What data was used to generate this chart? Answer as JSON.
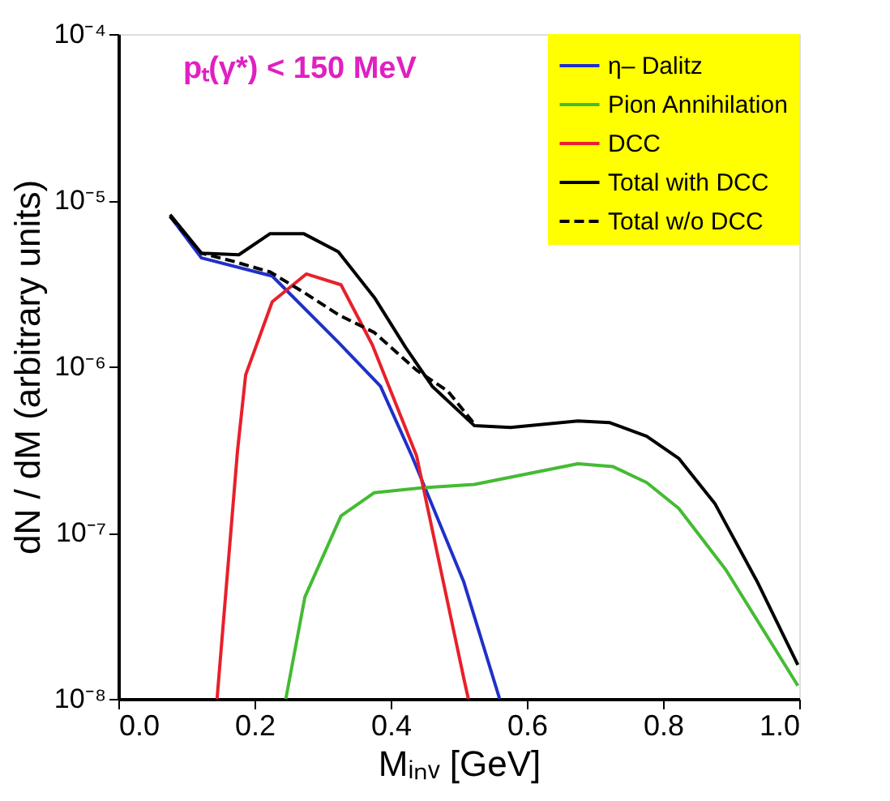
{
  "chart_data": {
    "type": "line",
    "xlabel": "Mᵢₙᵥ [GeV]",
    "ylabel": "dN / dM (arbitrary units)",
    "annotations": [
      "pₜ(γ*) < 150 MeV"
    ],
    "log": "y",
    "grid": false,
    "legend": "top right",
    "marker": "none",
    "xlim": [
      0,
      1
    ],
    "xticks": [
      {
        "value": 0,
        "label": "0.0"
      },
      0.2,
      0.4,
      0.6,
      0.8,
      {
        "value": 1,
        "label": "1.0"
      }
    ],
    "ylim": [
      1e-08,
      0.0001
    ],
    "yticks": [
      {
        "value": 1e-08,
        "label": "10⁻⁸"
      },
      {
        "value": 1e-07,
        "label": "10⁻⁷"
      },
      {
        "value": 1e-06,
        "label": "10⁻⁶"
      },
      {
        "value": 1e-05,
        "label": "10⁻⁵"
      },
      {
        "value": 0.0001,
        "label": "10⁻⁴"
      }
    ],
    "series": [
      {
        "name": "η– Dalitz",
        "color": "#2030c8",
        "line_style": "solid",
        "x": [
          0.076,
          0.122,
          0.226,
          0.323,
          0.385,
          0.431,
          0.507,
          0.56
        ],
        "values": [
          8e-06,
          4.5e-06,
          3.5e-06,
          1.4e-06,
          7.6e-07,
          2.9e-07,
          5.1e-08,
          1e-08
        ]
      },
      {
        "name": "Pion Annihilation",
        "color": "#44bb33",
        "line_style": "solid",
        "x": [
          0.246,
          0.274,
          0.327,
          0.376,
          0.445,
          0.523,
          0.675,
          0.726,
          0.776,
          0.823,
          0.892,
          0.998
        ],
        "values": [
          1e-08,
          4.1e-08,
          1.26e-07,
          1.74e-07,
          1.86e-07,
          1.95e-07,
          2.6e-07,
          2.5e-07,
          2e-07,
          1.4e-07,
          6e-08,
          1.2e-08
        ]
      },
      {
        "name": "DCC",
        "color": "#e8202a",
        "line_style": "solid",
        "x": [
          0.145,
          0.175,
          0.187,
          0.226,
          0.276,
          0.327,
          0.373,
          0.438,
          0.507,
          0.514
        ],
        "values": [
          1e-08,
          3.1e-07,
          8.9e-07,
          2.45e-06,
          3.6e-06,
          3.1e-06,
          1.35e-06,
          2.9e-07,
          1.35e-08,
          1e-08
        ]
      },
      {
        "name": "Total with DCC",
        "color": "#000000",
        "line_style": "solid",
        "x": [
          0.076,
          0.122,
          0.177,
          0.223,
          0.272,
          0.323,
          0.376,
          0.422,
          0.461,
          0.523,
          0.576,
          0.675,
          0.721,
          0.776,
          0.823,
          0.876,
          0.938,
          0.998
        ],
        "values": [
          8.2e-06,
          4.8e-06,
          4.7e-06,
          6.3e-06,
          6.3e-06,
          4.9e-06,
          2.6e-06,
          1.3e-06,
          7.6e-07,
          4.4e-07,
          4.3e-07,
          4.7e-07,
          4.6e-07,
          3.8e-07,
          2.8e-07,
          1.5e-07,
          5.1e-08,
          1.6e-08
        ]
      },
      {
        "name": "Total w/o DCC",
        "color": "#000000",
        "line_style": "dashed",
        "x": [
          0.076,
          0.122,
          0.168,
          0.223,
          0.272,
          0.323,
          0.376,
          0.438,
          0.484,
          0.523
        ],
        "values": [
          8e-06,
          4.8e-06,
          4.3e-06,
          3.7e-06,
          2.8e-06,
          2.05e-06,
          1.6e-06,
          9.5e-07,
          7.1e-07,
          4.5e-07
        ]
      }
    ]
  }
}
